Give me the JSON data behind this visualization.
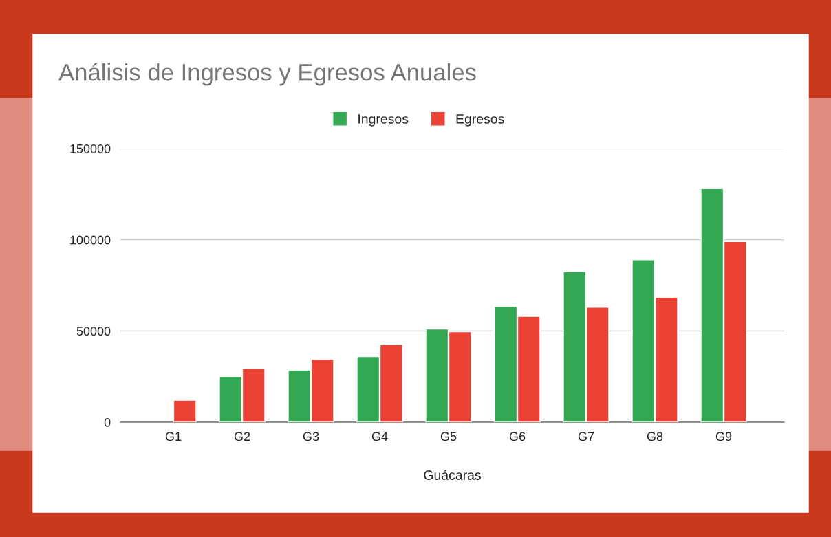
{
  "chart_data": {
    "type": "bar",
    "title": "Análisis de Ingresos y Egresos Anuales",
    "xlabel": "Guácaras",
    "categories": [
      "G1",
      "G2",
      "G3",
      "G4",
      "G5",
      "G6",
      "G7",
      "G8",
      "G9"
    ],
    "series": [
      {
        "name": "Ingresos",
        "color": "#34a853",
        "values": [
          null,
          25000,
          28500,
          36000,
          51000,
          63500,
          82500,
          89000,
          128000
        ]
      },
      {
        "name": "Egresos",
        "color": "#ea4335",
        "values": [
          12000,
          29500,
          34500,
          42500,
          49500,
          58000,
          63000,
          68500,
          99000
        ]
      }
    ],
    "ylim": [
      0,
      150000
    ],
    "yticks": [
      0,
      50000,
      100000,
      150000
    ],
    "grid": "y",
    "legend": "top"
  }
}
